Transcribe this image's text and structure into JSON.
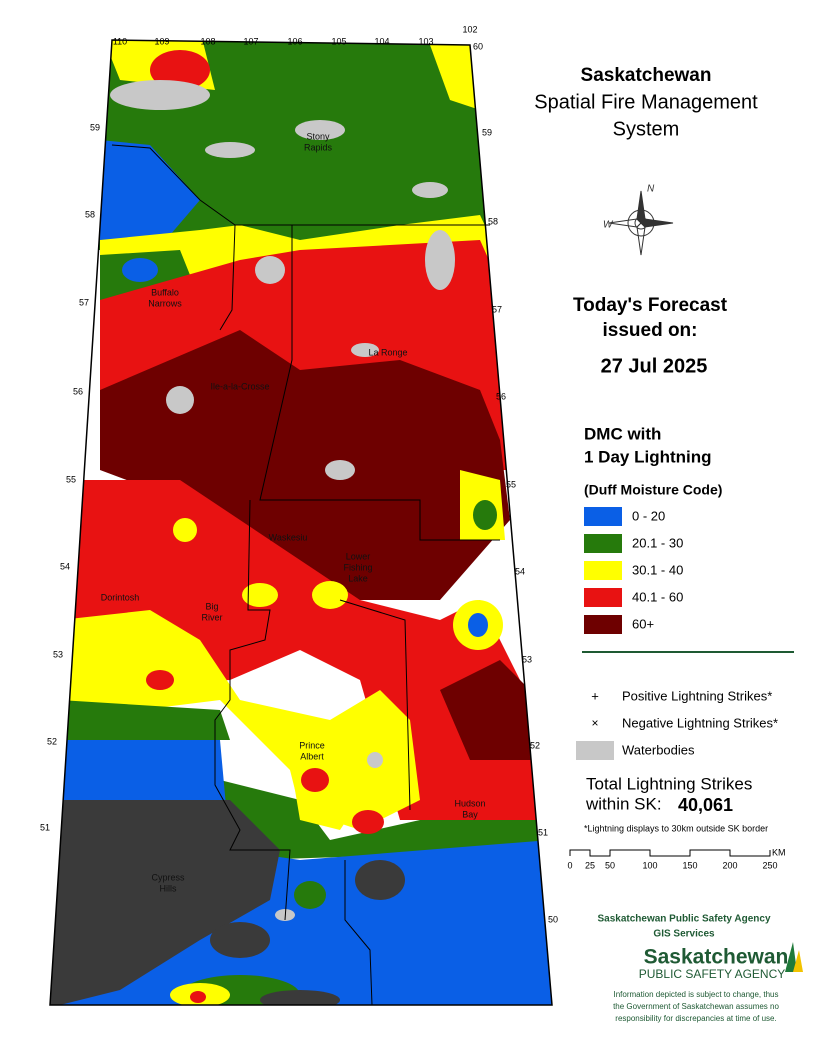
{
  "header": {
    "title": "Saskatchewan",
    "subtitle_lines": [
      "Spatial Fire Management",
      "System"
    ]
  },
  "forecast": {
    "heading_lines": [
      "Today's Forecast",
      "issued on:"
    ],
    "date": "27 Jul 2025"
  },
  "legend": {
    "title_lines": [
      "DMC with",
      "1 Day Lightning"
    ],
    "subtitle": "(Duff Moisture Code)",
    "classes": [
      {
        "label": "0 - 20",
        "color": "#0a5fe6"
      },
      {
        "label": "20.1 - 30",
        "color": "#267a0c"
      },
      {
        "label": "30.1 - 40",
        "color": "#ffff00"
      },
      {
        "label": "40.1 - 60",
        "color": "#e81212"
      },
      {
        "label": "60+",
        "color": "#6e0000"
      }
    ]
  },
  "symbols": [
    {
      "marker": "+",
      "label": "Positive Lightning Strikes*"
    },
    {
      "marker": "×",
      "label": "Negative Lightning Strikes*"
    },
    {
      "label": "Waterbodies",
      "color": "#c8c8c8"
    }
  ],
  "total": {
    "label_lines": [
      "Total Lightning Strikes",
      "within SK:"
    ],
    "value": "40,061"
  },
  "note": "*Lightning displays to 30km outside SK border",
  "scale": {
    "ticks": [
      0,
      25,
      50,
      100,
      150,
      200,
      250
    ],
    "unit": "KM"
  },
  "agency": {
    "name_lines": [
      "Saskatchewan Public Safety Agency",
      "GIS  Services"
    ],
    "logo_lines": [
      "Saskatchewan",
      "PUBLIC SAFETY AGENCY"
    ]
  },
  "disclaimer_lines": [
    "Information depicted is subject to change, thus",
    "the Government of Saskatchewan assumes no",
    "responsibility for discrepancies at time of use."
  ],
  "map": {
    "longitudes": [
      110,
      109,
      108,
      107,
      106,
      105,
      104,
      103,
      102
    ],
    "north_latitude": 60,
    "latitudes": [
      59,
      58,
      57,
      56,
      55,
      54,
      53,
      52,
      51,
      50
    ],
    "places": [
      {
        "lines": [
          "Stony",
          "Rapids"
        ]
      },
      {
        "lines": [
          "Buffalo",
          "Narrows"
        ]
      },
      {
        "lines": [
          "La Ronge"
        ]
      },
      {
        "lines": [
          "Ile-a-la-Crosse"
        ]
      },
      {
        "lines": [
          "Dorintosh"
        ]
      },
      {
        "lines": [
          "Big",
          "River"
        ]
      },
      {
        "lines": [
          "Waskesiu"
        ]
      },
      {
        "lines": [
          "Lower",
          "Fishing",
          "Lake"
        ]
      },
      {
        "lines": [
          "Prince",
          "Albert"
        ]
      },
      {
        "lines": [
          "Hudson",
          "Bay"
        ]
      },
      {
        "lines": [
          "Cypress",
          "Hills"
        ]
      }
    ]
  }
}
